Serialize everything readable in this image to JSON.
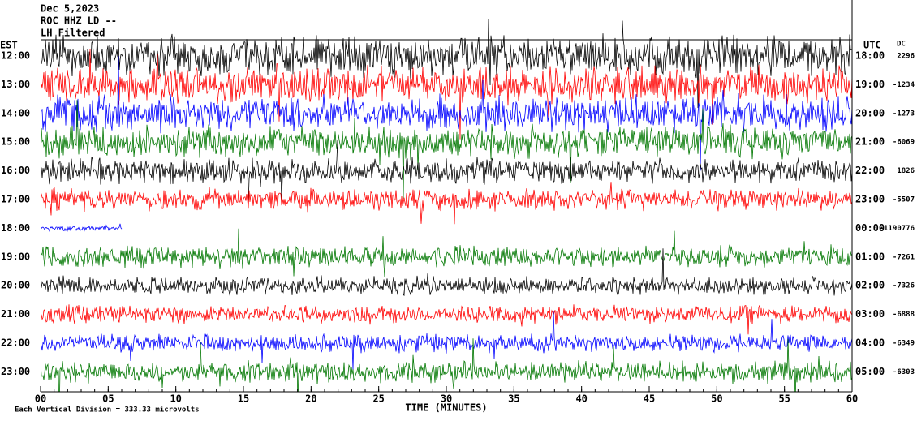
{
  "header": {
    "date": "Dec 5,2023",
    "station": "ROC HHZ LD --",
    "filter": "LH Filtered"
  },
  "left_title": "EST",
  "right_title": "UTC",
  "dc_title": "DC",
  "left_labels": [
    "12:00",
    "13:00",
    "14:00",
    "15:00",
    "16:00",
    "17:00",
    "18:00",
    "19:00",
    "20:00",
    "21:00",
    "22:00",
    "23:00"
  ],
  "right_labels": [
    "18:00",
    "19:00",
    "20:00",
    "21:00",
    "22:00",
    "23:00",
    "00:00",
    "01:00",
    "02:00",
    "03:00",
    "04:00",
    "05:00"
  ],
  "dc_values": [
    "2296",
    "-1234",
    "-1273",
    "-6069",
    "1826",
    "-5507",
    "-1190776",
    "-7261",
    "-7326",
    "-6888",
    "-6349",
    "-6303"
  ],
  "x_ticks": [
    "00",
    "05",
    "10",
    "15",
    "20",
    "25",
    "30",
    "35",
    "40",
    "45",
    "50",
    "55",
    "60"
  ],
  "x_label": "TIME (MINUTES)",
  "footer": "Each Vertical Division = 333.33 microvolts"
}
